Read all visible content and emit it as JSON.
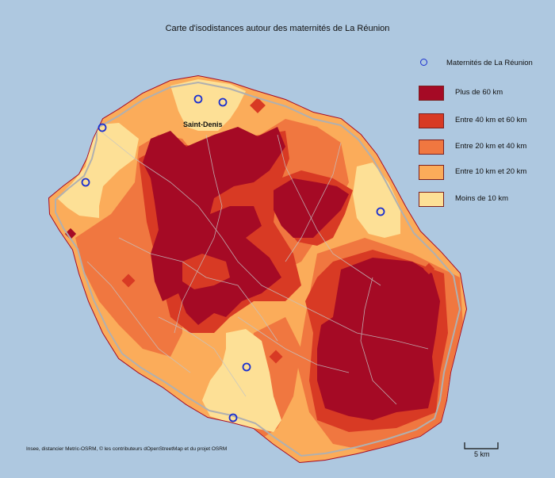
{
  "title": "Carte d'isodistances autour des maternités de La Réunion",
  "legend": {
    "maternity_label": "Maternités de La Réunion",
    "classes": [
      {
        "label": "Plus de 60 km",
        "color": "#a50a25"
      },
      {
        "label": "Entre 40 km et 60 km",
        "color": "#d83a24"
      },
      {
        "label": "Entre 20 km et 40 km",
        "color": "#f07740"
      },
      {
        "label": "Entre 10 km et 20 km",
        "color": "#fbac5a"
      },
      {
        "label": "Moins de 10 km",
        "color": "#fde096"
      }
    ]
  },
  "colors": {
    "sea": "#aec8e0",
    "coast_outline": "#b0b0b0",
    "maternity_marker": "#1a2fd0"
  },
  "city_label": "Saint-Denis",
  "source": "Insee, distancier Metric-OSRM, © les contributeurs dOpenStreetMap et du projet OSRM",
  "scale_bar": {
    "label": "5 km"
  }
}
